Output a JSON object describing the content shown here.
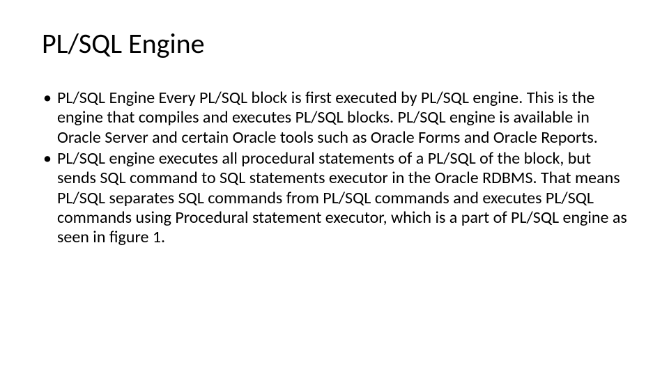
{
  "slide": {
    "title": "PL/SQL Engine",
    "bullets": [
      "PL/SQL Engine Every PL/SQL block is first executed by PL/SQL engine. This is the engine that compiles and executes PL/SQL blocks.   PL/SQL engine is available in Oracle Server and certain Oracle tools such as Oracle Forms and Oracle Reports.",
      "PL/SQL engine executes all procedural statements of a PL/SQL of the block, but sends SQL command to SQL statements executor in the Oracle RDBMS.  That means PL/SQL   separates SQL commands from PL/SQL commands and executes PL/SQL commands using Procedural statement executor, which is a part of PL/SQL engine as seen in figure 1."
    ],
    "bullet_char": "•"
  },
  "style": {
    "background_color": "#ffffff",
    "text_color": "#000000",
    "title_fontsize": 40,
    "body_fontsize": 24,
    "font_family": "Calibri"
  }
}
